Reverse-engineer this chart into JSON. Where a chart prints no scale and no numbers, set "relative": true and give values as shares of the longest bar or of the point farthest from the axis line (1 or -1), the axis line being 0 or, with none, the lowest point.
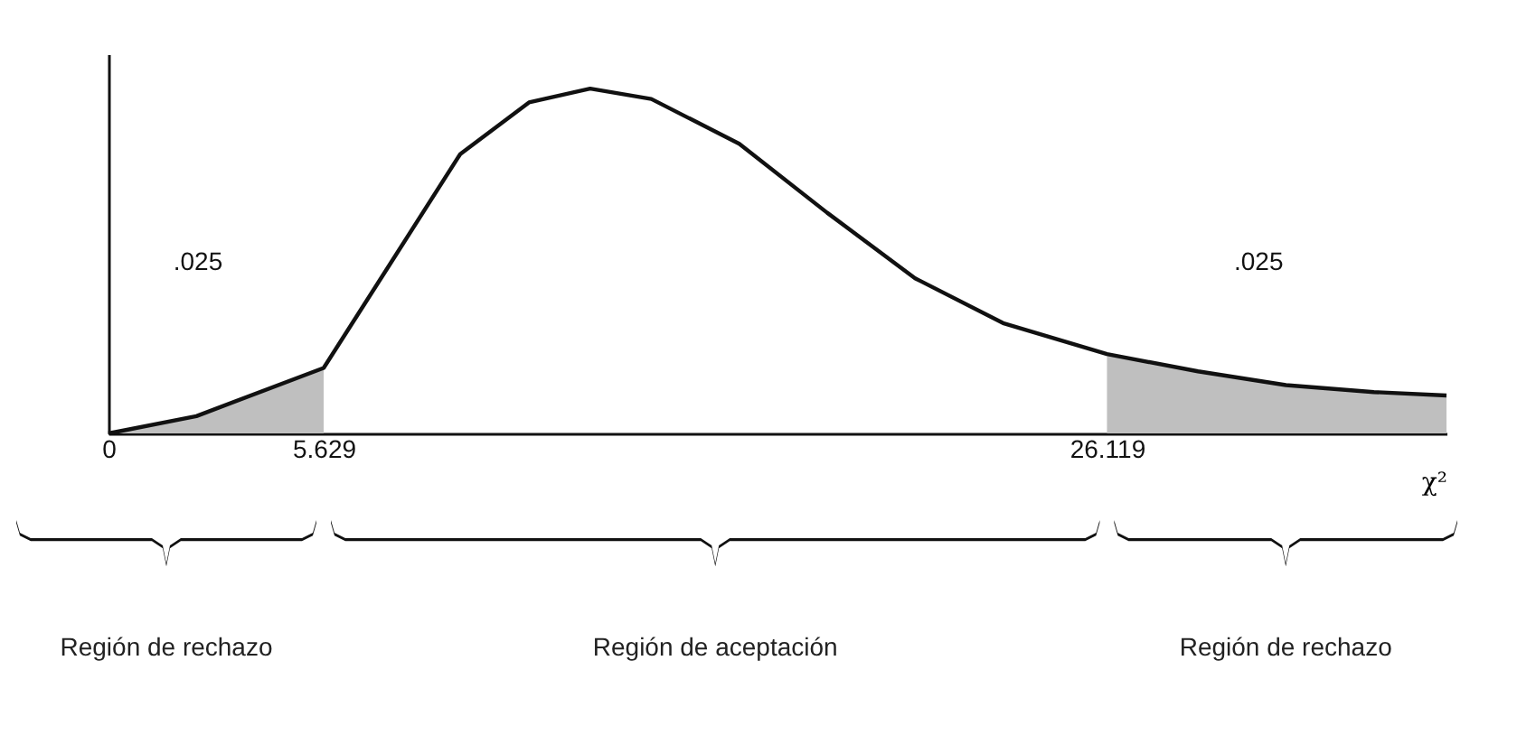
{
  "chart_data": {
    "type": "line",
    "relative": true,
    "xlabel": "χ²",
    "x": [
      0,
      2.3,
      5.629,
      7.3,
      9.2,
      11,
      12.6,
      14.2,
      16.5,
      18.8,
      21.1,
      23.4,
      26.119,
      28.5,
      30.8,
      33.1,
      35
    ],
    "series": [
      {
        "color": "#111111",
        "values": [
          0,
          0.05,
          0.19,
          0.48,
          0.81,
          0.96,
          1,
          0.97,
          0.84,
          0.64,
          0.45,
          0.32,
          0.23,
          0.18,
          0.14,
          0.12,
          0.11
        ]
      },
      {
        "type": "area",
        "color": "#bfbfbf",
        "x": [
          0,
          2.3,
          5.629
        ],
        "values": [
          0,
          0.05,
          0.19
        ]
      },
      {
        "type": "area",
        "color": "#bfbfbf",
        "x": [
          26.119,
          28.5,
          30.8,
          33.1,
          35
        ],
        "values": [
          0.23,
          0.18,
          0.14,
          0.12,
          0.11
        ]
      }
    ],
    "xlim": [
      0,
      35
    ],
    "xticks": [
      0,
      5.629,
      26.119
    ],
    "annotations": [
      ".025",
      ".025",
      "Región de rechazo",
      "Región de aceptación",
      "Región de rechazo"
    ],
    "grid": false
  }
}
